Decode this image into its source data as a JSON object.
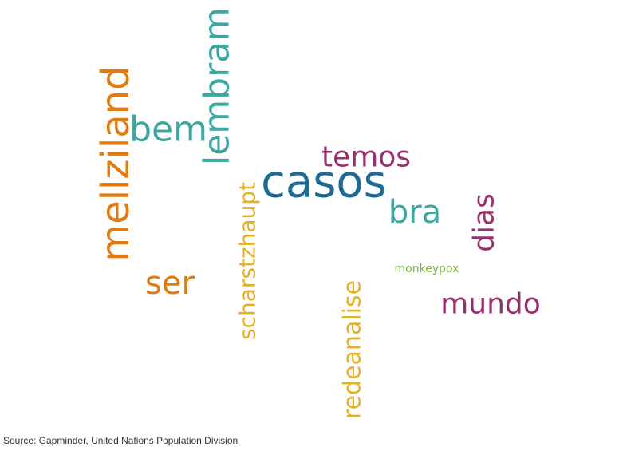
{
  "chart_data": {
    "type": "wordcloud",
    "words": [
      {
        "text": "casos",
        "weight": 100,
        "color": "#1f6a93",
        "orientation": "horizontal"
      },
      {
        "text": "mellziland",
        "weight": 88,
        "color": "#e07b12",
        "orientation": "vertical"
      },
      {
        "text": "lembram",
        "weight": 80,
        "color": "#3aa8a0",
        "orientation": "vertical"
      },
      {
        "text": "bem",
        "weight": 70,
        "color": "#3aa8a0",
        "orientation": "horizontal"
      },
      {
        "text": "bra",
        "weight": 60,
        "color": "#3aa8a0",
        "orientation": "horizontal"
      },
      {
        "text": "ser",
        "weight": 58,
        "color": "#e07b12",
        "orientation": "horizontal"
      },
      {
        "text": "temos",
        "weight": 52,
        "color": "#96306e",
        "orientation": "horizontal"
      },
      {
        "text": "dias",
        "weight": 50,
        "color": "#96306e",
        "orientation": "vertical"
      },
      {
        "text": "mundo",
        "weight": 50,
        "color": "#96306e",
        "orientation": "horizontal"
      },
      {
        "text": "redeanalise",
        "weight": 40,
        "color": "#e6b020",
        "orientation": "vertical"
      },
      {
        "text": "scharstzhaupt",
        "weight": 40,
        "color": "#e6b020",
        "orientation": "vertical"
      },
      {
        "text": "monkeypox",
        "weight": 20,
        "color": "#79b53f",
        "orientation": "horizontal"
      }
    ]
  },
  "source": {
    "prefix": "Source: ",
    "link1": "Gapminder",
    "separator": ", ",
    "link2": "United Nations Population Division"
  }
}
